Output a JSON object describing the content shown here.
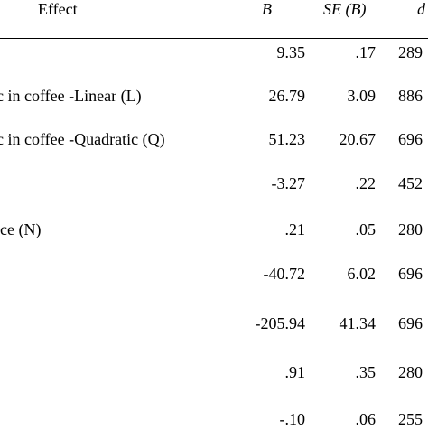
{
  "table": {
    "headers": {
      "effect": "Effect",
      "b": "B",
      "se": "SE (B)",
      "df": "d"
    },
    "rows": [
      {
        "effect": "",
        "b": "9.35",
        "se": ".17",
        "df": "289"
      },
      {
        "effect": "ic in coffee -Linear (L)",
        "b": "26.79",
        "se": "3.09",
        "df": "886"
      },
      {
        "effect": "ic in coffee -Quadratic (Q)",
        "b": "51.23",
        "se": "20.67",
        "df": "696"
      },
      {
        "effect": "",
        "b": "-3.27",
        "se": ".22",
        "df": "452"
      },
      {
        "effect": "nce (N)",
        "b": ".21",
        "se": ".05",
        "df": "280"
      },
      {
        "effect": "",
        "b": "-40.72",
        "se": "6.02",
        "df": "696"
      },
      {
        "effect": "",
        "b": "-205.94",
        "se": "41.34",
        "df": "696"
      },
      {
        "effect": "",
        "b": ".91",
        "se": ".35",
        "df": "280"
      },
      {
        "effect": "",
        "b": "-.10",
        "se": ".06",
        "df": "255"
      }
    ]
  }
}
